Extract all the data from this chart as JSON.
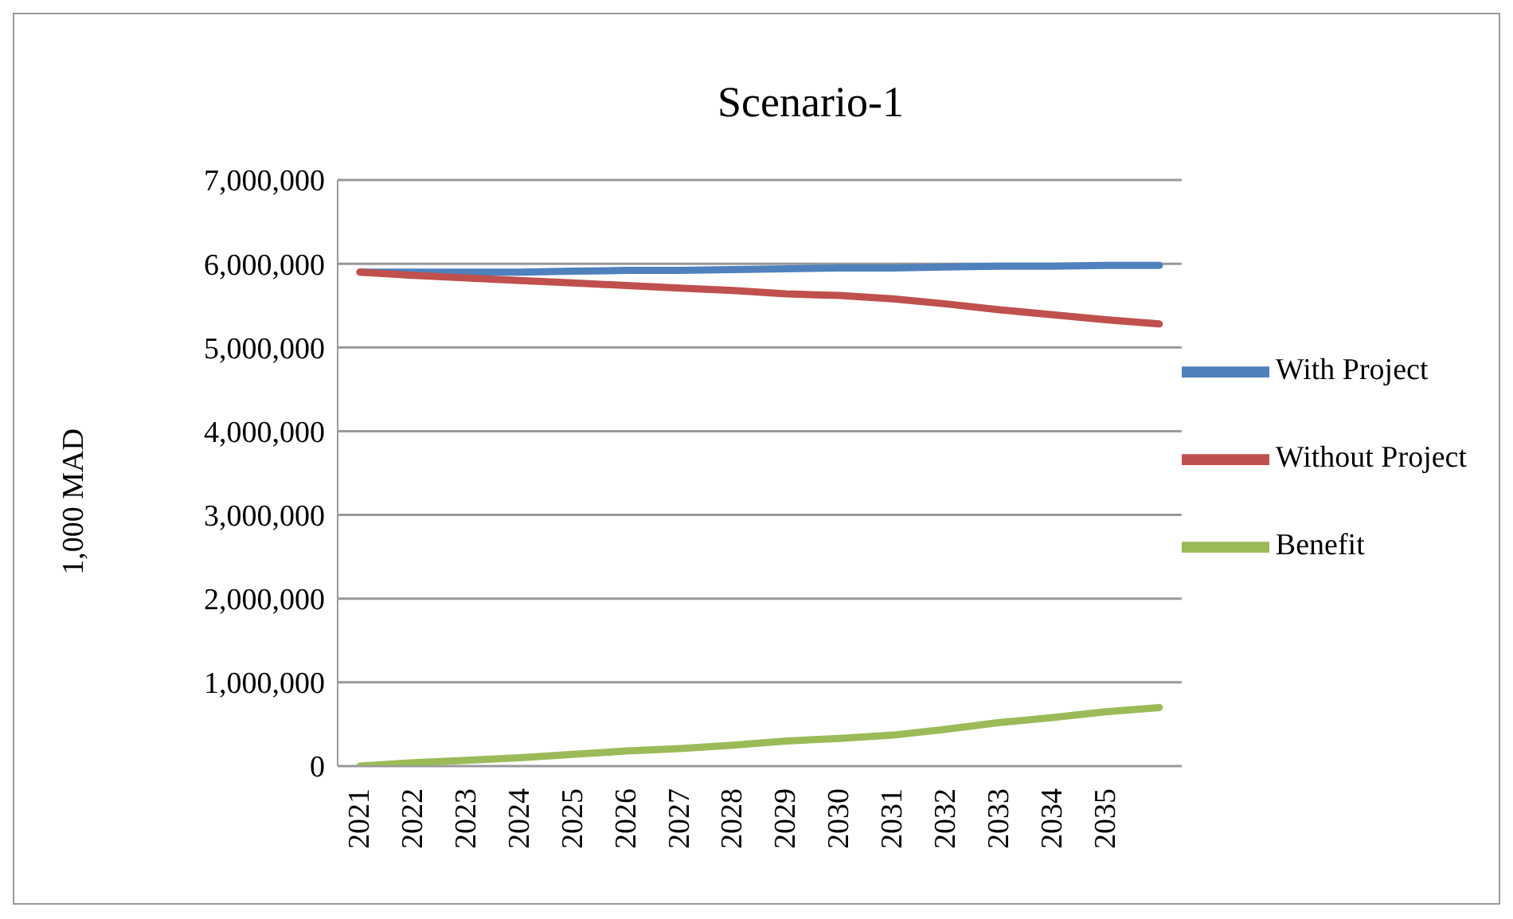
{
  "chart_data": {
    "type": "line",
    "title": "Scenario-1",
    "ylabel": "1,000 MAD",
    "categories": [
      "2021",
      "2022",
      "2023",
      "2024",
      "2025",
      "2026",
      "2027",
      "2028",
      "2029",
      "2030",
      "2031",
      "2032",
      "2033",
      "2034",
      "2035",
      null
    ],
    "series": [
      {
        "name": "With Project",
        "color": "#4f81bd",
        "values": [
          5900000,
          5900000,
          5900000,
          5900000,
          5910000,
          5920000,
          5920000,
          5930000,
          5940000,
          5950000,
          5950000,
          5960000,
          5970000,
          5970000,
          5980000,
          5980000
        ]
      },
      {
        "name": "Without Project",
        "color": "#c0504d",
        "values": [
          5900000,
          5860000,
          5830000,
          5800000,
          5770000,
          5740000,
          5710000,
          5680000,
          5640000,
          5620000,
          5580000,
          5520000,
          5450000,
          5390000,
          5330000,
          5280000
        ]
      },
      {
        "name": "Benefit",
        "color": "#9bbb59",
        "values": [
          0,
          40000,
          70000,
          100000,
          140000,
          180000,
          210000,
          250000,
          300000,
          330000,
          370000,
          440000,
          520000,
          580000,
          650000,
          700000
        ]
      }
    ],
    "ylim": [
      0,
      7000000
    ],
    "yticks": [
      0,
      {
        "value": 1000000,
        "label": "1,000,000"
      },
      {
        "value": 2000000,
        "label": "2,000,000"
      },
      {
        "value": 3000000,
        "label": "3,000,000"
      },
      {
        "value": 4000000,
        "label": "4,000,000"
      },
      {
        "value": 5000000,
        "label": "5,000,000"
      },
      {
        "value": 6000000,
        "label": "6,000,000"
      },
      {
        "value": 7000000,
        "label": "7,000,000"
      }
    ],
    "grid": "y",
    "legend": "right",
    "marker": "none",
    "line_style": "solid"
  }
}
